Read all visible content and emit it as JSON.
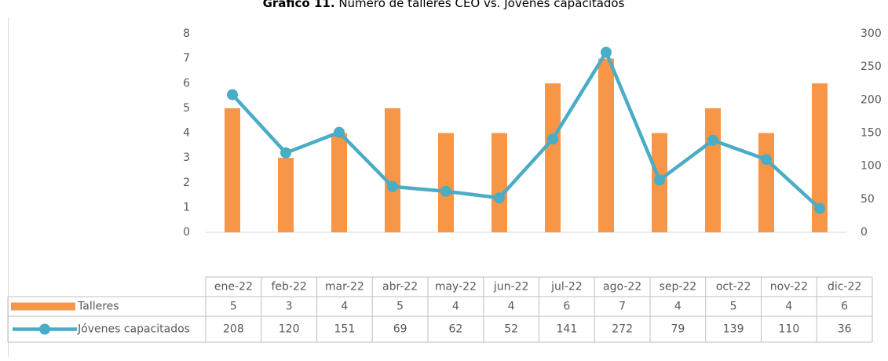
{
  "chart_data": {
    "type": "bar_line",
    "title_number": "Gráfico 11.",
    "title": "Número de talleres CEO vs. Jóvenes capacitados",
    "categories": [
      "ene-22",
      "feb-22",
      "mar-22",
      "abr-22",
      "may-22",
      "jun-22",
      "jul-22",
      "ago-22",
      "sep-22",
      "oct-22",
      "nov-22",
      "dic-22"
    ],
    "series": [
      {
        "name": "Talleres",
        "type": "bar",
        "color": "#f79646",
        "values": [
          5,
          3,
          4,
          5,
          4,
          4,
          6,
          7,
          4,
          5,
          4,
          6
        ]
      },
      {
        "name": "Jóvenes capacitados",
        "type": "line",
        "axis": "y2",
        "color": "#4bacc6",
        "values": [
          208,
          120,
          151,
          69,
          62,
          52,
          141,
          272,
          79,
          139,
          110,
          36
        ]
      }
    ],
    "ylim": [
      0,
      8
    ],
    "yticks": [
      0,
      1,
      2,
      3,
      4,
      5,
      6,
      7,
      8
    ],
    "y2lim": [
      0,
      300
    ],
    "y2ticks": [
      0,
      50,
      100,
      150,
      200,
      250,
      300
    ],
    "grid": false,
    "data_table": true
  }
}
